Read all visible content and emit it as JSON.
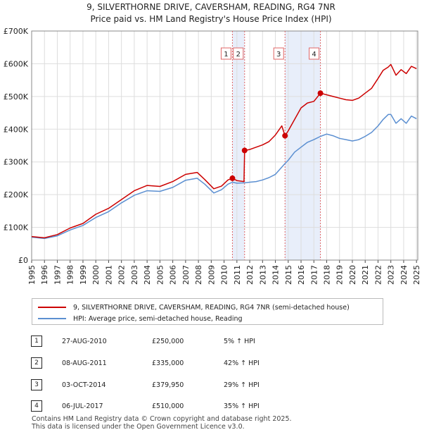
{
  "chart_data": {
    "type": "line",
    "title": "9, SILVERTHORNE DRIVE, CAVERSHAM, READING, RG4 7NR",
    "subtitle": "Price paid vs. HM Land Registry's House Price Index (HPI)",
    "xlabel": "",
    "ylabel": "",
    "xlim": [
      1995,
      2025.1
    ],
    "ylim": [
      0,
      700000
    ],
    "y_ticks": [
      0,
      100000,
      200000,
      300000,
      400000,
      500000,
      600000,
      700000
    ],
    "y_tick_labels": [
      "£0",
      "£100K",
      "£200K",
      "£300K",
      "£400K",
      "£500K",
      "£600K",
      "£700K"
    ],
    "x_ticks": [
      1995,
      1996,
      1997,
      1998,
      1999,
      2000,
      2001,
      2002,
      2003,
      2004,
      2005,
      2006,
      2007,
      2008,
      2009,
      2010,
      2011,
      2012,
      2013,
      2014,
      2015,
      2016,
      2017,
      2018,
      2019,
      2020,
      2021,
      2022,
      2023,
      2024,
      2025
    ],
    "x_tick_labels": [
      "1995",
      "1996",
      "1997",
      "1998",
      "1999",
      "2000",
      "2001",
      "2002",
      "2003",
      "2004",
      "2005",
      "2006",
      "2007",
      "2008",
      "2009",
      "2010",
      "2011",
      "2012",
      "2013",
      "2014",
      "2015",
      "2016",
      "2017",
      "2018",
      "2019",
      "2020",
      "2021",
      "2022",
      "2023",
      "2024",
      "2025"
    ],
    "grid": true,
    "shaded_ranges": [
      [
        2010.65,
        2011.6
      ],
      [
        2014.75,
        2017.51
      ]
    ],
    "series": [
      {
        "name": "9, SILVERTHORNE DRIVE, CAVERSHAM, READING, RG4 7NR (semi-detached house)",
        "color": "#cc0000",
        "x": [
          1995,
          1996,
          1997,
          1998,
          1999,
          2000,
          2001,
          2002,
          2003,
          2004,
          2005,
          2006,
          2007,
          2007.9,
          2008.5,
          2009.2,
          2009.8,
          2010.3,
          2010.65,
          2011.0,
          2011.55,
          2011.6,
          2012.0,
          2012.5,
          2013.0,
          2013.5,
          2014.0,
          2014.5,
          2014.75,
          2015.0,
          2015.5,
          2016.0,
          2016.5,
          2017.0,
          2017.51,
          2018.0,
          2018.5,
          2019.0,
          2019.5,
          2020.0,
          2020.5,
          2021.0,
          2021.5,
          2022.0,
          2022.4,
          2022.8,
          2023.0,
          2023.4,
          2023.8,
          2024.2,
          2024.6,
          2025.0
        ],
        "y": [
          72000,
          68000,
          78000,
          98000,
          112000,
          140000,
          158000,
          185000,
          212000,
          228000,
          225000,
          240000,
          262000,
          268000,
          246000,
          218000,
          226000,
          245000,
          250000,
          243000,
          240000,
          335000,
          338000,
          345000,
          352000,
          362000,
          382000,
          410000,
          379950,
          395000,
          430000,
          465000,
          480000,
          485000,
          510000,
          505000,
          500000,
          495000,
          490000,
          488000,
          495000,
          510000,
          525000,
          555000,
          580000,
          590000,
          598000,
          565000,
          582000,
          570000,
          592000,
          585000
        ]
      },
      {
        "name": "HPI: Average price, semi-detached house, Reading",
        "color": "#5b8fd1",
        "x": [
          1995,
          1996,
          1997,
          1998,
          1999,
          2000,
          2001,
          2002,
          2003,
          2004,
          2005,
          2006,
          2007,
          2007.9,
          2008.5,
          2009.2,
          2009.8,
          2010.3,
          2010.65,
          2011.0,
          2011.6,
          2012.0,
          2012.5,
          2013.0,
          2013.5,
          2014.0,
          2014.75,
          2015.0,
          2015.5,
          2016.0,
          2016.5,
          2017.0,
          2017.51,
          2018.0,
          2018.5,
          2019.0,
          2019.5,
          2020.0,
          2020.5,
          2021.0,
          2021.5,
          2022.0,
          2022.4,
          2022.8,
          2023.0,
          2023.4,
          2023.8,
          2024.2,
          2024.6,
          2025.0
        ],
        "y": [
          70000,
          66000,
          74000,
          92000,
          106000,
          130000,
          148000,
          175000,
          198000,
          212000,
          210000,
          222000,
          244000,
          250000,
          232000,
          205000,
          215000,
          232000,
          238000,
          235000,
          236000,
          238000,
          240000,
          245000,
          252000,
          262000,
          295000,
          305000,
          330000,
          345000,
          360000,
          368000,
          378000,
          385000,
          380000,
          372000,
          368000,
          364000,
          368000,
          378000,
          390000,
          410000,
          430000,
          445000,
          445000,
          418000,
          432000,
          418000,
          440000,
          432000
        ]
      }
    ],
    "markers": [
      {
        "label": "1",
        "x": 2010.65,
        "y": 250000
      },
      {
        "label": "2",
        "x": 2011.6,
        "y": 335000
      },
      {
        "label": "3",
        "x": 2014.75,
        "y": 379950
      },
      {
        "label": "4",
        "x": 2017.51,
        "y": 510000
      }
    ],
    "legend_position": "bottom"
  },
  "transactions": [
    {
      "num": "1",
      "date": "27-AUG-2010",
      "price": "£250,000",
      "hpi": "5% ↑ HPI"
    },
    {
      "num": "2",
      "date": "08-AUG-2011",
      "price": "£335,000",
      "hpi": "42% ↑ HPI"
    },
    {
      "num": "3",
      "date": "03-OCT-2014",
      "price": "£379,950",
      "hpi": "29% ↑ HPI"
    },
    {
      "num": "4",
      "date": "06-JUL-2017",
      "price": "£510,000",
      "hpi": "35% ↑ HPI"
    }
  ],
  "footer": {
    "line1": "Contains HM Land Registry data © Crown copyright and database right 2025.",
    "line2": "This data is licensed under the Open Government Licence v3.0."
  }
}
